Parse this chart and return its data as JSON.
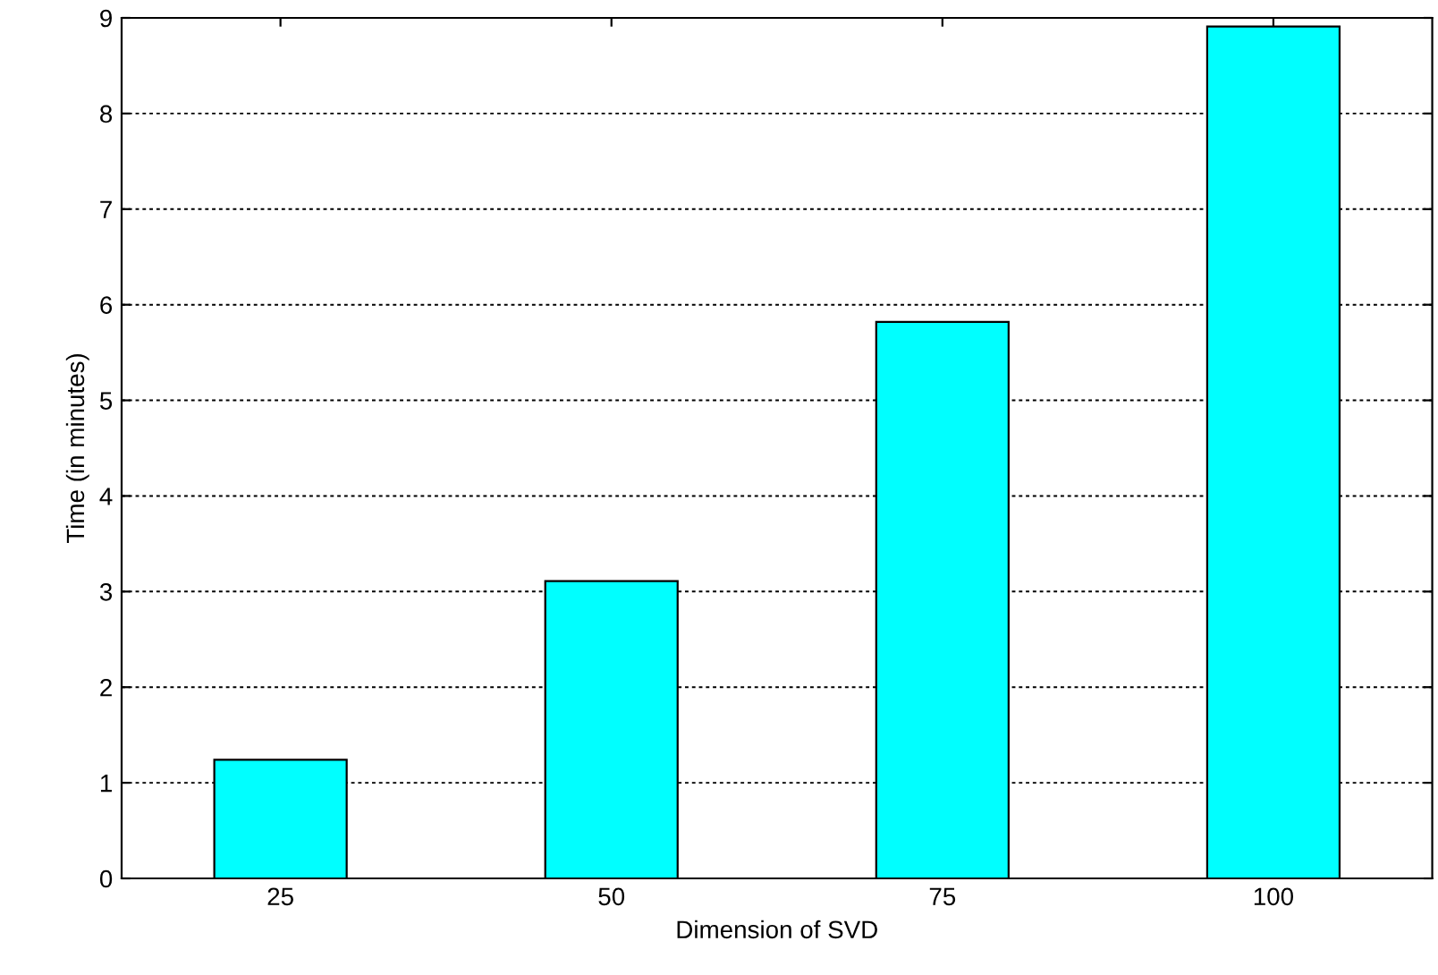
{
  "chart_data": {
    "type": "bar",
    "xlabel": "Dimension of SVD",
    "ylabel": "Time (in minutes)",
    "categories": [
      "25",
      "50",
      "75",
      "100"
    ],
    "series": [
      {
        "color": "#00ffff",
        "values": [
          1.24,
          3.11,
          5.82,
          8.91
        ]
      }
    ],
    "ylim": [
      0,
      9
    ],
    "yticks": [
      0,
      1,
      2,
      3,
      4,
      5,
      6,
      7,
      8,
      9
    ],
    "grid": "y"
  }
}
